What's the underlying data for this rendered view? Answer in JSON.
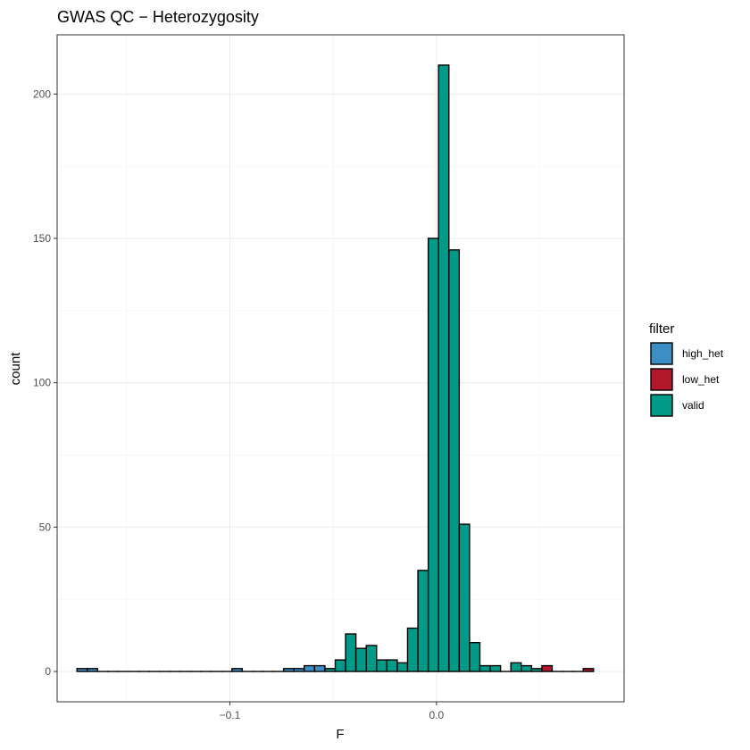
{
  "chart_data": {
    "type": "bar",
    "title": "GWAS QC − Heterozygosity",
    "xlabel": "F",
    "ylabel": "count",
    "xlim": [
      -0.1836,
      0.0908
    ],
    "ylim": [
      -10.5,
      220.5
    ],
    "x_ticks": [
      {
        "value": -0.1,
        "label": "−0.1"
      },
      {
        "value": 0.0,
        "label": "0.0"
      }
    ],
    "y_ticks": [
      {
        "value": 0,
        "label": "0"
      },
      {
        "value": 50,
        "label": "50"
      },
      {
        "value": 100,
        "label": "100"
      },
      {
        "value": 150,
        "label": "150"
      },
      {
        "value": 200,
        "label": "200"
      }
    ],
    "grid": true,
    "bin_width": 0.005,
    "bin_centers_start": -0.1715,
    "bins": [
      {
        "count": 1,
        "filter": "high_het"
      },
      {
        "count": 1,
        "filter": "high_het"
      },
      {
        "count": 0,
        "filter": "valid"
      },
      {
        "count": 0,
        "filter": "valid"
      },
      {
        "count": 0,
        "filter": "valid"
      },
      {
        "count": 0,
        "filter": "valid"
      },
      {
        "count": 0,
        "filter": "valid"
      },
      {
        "count": 0,
        "filter": "valid"
      },
      {
        "count": 0,
        "filter": "valid"
      },
      {
        "count": 0,
        "filter": "valid"
      },
      {
        "count": 0,
        "filter": "valid"
      },
      {
        "count": 0,
        "filter": "valid"
      },
      {
        "count": 0,
        "filter": "valid"
      },
      {
        "count": 0,
        "filter": "valid"
      },
      {
        "count": 0,
        "filter": "valid"
      },
      {
        "count": 1,
        "filter": "high_het"
      },
      {
        "count": 0,
        "filter": "valid"
      },
      {
        "count": 0,
        "filter": "valid"
      },
      {
        "count": 0,
        "filter": "valid"
      },
      {
        "count": 0,
        "filter": "valid"
      },
      {
        "count": 1,
        "filter": "high_het"
      },
      {
        "count": 1,
        "filter": "high_het"
      },
      {
        "count": 2,
        "filter": "high_het"
      },
      {
        "count": 2,
        "filter": "high_het"
      },
      {
        "count": 1,
        "filter": "valid"
      },
      {
        "count": 4,
        "filter": "valid"
      },
      {
        "count": 13,
        "filter": "valid"
      },
      {
        "count": 8,
        "filter": "valid"
      },
      {
        "count": 9,
        "filter": "valid"
      },
      {
        "count": 4,
        "filter": "valid"
      },
      {
        "count": 4,
        "filter": "valid"
      },
      {
        "count": 3,
        "filter": "valid"
      },
      {
        "count": 15,
        "filter": "valid"
      },
      {
        "count": 35,
        "filter": "valid"
      },
      {
        "count": 150,
        "filter": "valid"
      },
      {
        "count": 210,
        "filter": "valid"
      },
      {
        "count": 146,
        "filter": "valid"
      },
      {
        "count": 51,
        "filter": "valid"
      },
      {
        "count": 10,
        "filter": "valid"
      },
      {
        "count": 2,
        "filter": "valid"
      },
      {
        "count": 2,
        "filter": "valid"
      },
      {
        "count": 0,
        "filter": "valid"
      },
      {
        "count": 3,
        "filter": "valid"
      },
      {
        "count": 2,
        "filter": "valid"
      },
      {
        "count": 1,
        "filter": "valid"
      },
      {
        "count": 2,
        "filter": "low_het"
      },
      {
        "count": 0,
        "filter": "valid"
      },
      {
        "count": 0,
        "filter": "valid"
      },
      {
        "count": 0,
        "filter": "valid"
      },
      {
        "count": 1,
        "filter": "low_het"
      }
    ],
    "legend": {
      "title": "filter",
      "position": "right",
      "entries": [
        {
          "key": "high_het",
          "label": "high_het",
          "color": "#3d8ec4"
        },
        {
          "key": "low_het",
          "label": "low_het",
          "color": "#b2182b"
        },
        {
          "key": "valid",
          "label": "valid",
          "color": "#009a88"
        }
      ]
    }
  }
}
